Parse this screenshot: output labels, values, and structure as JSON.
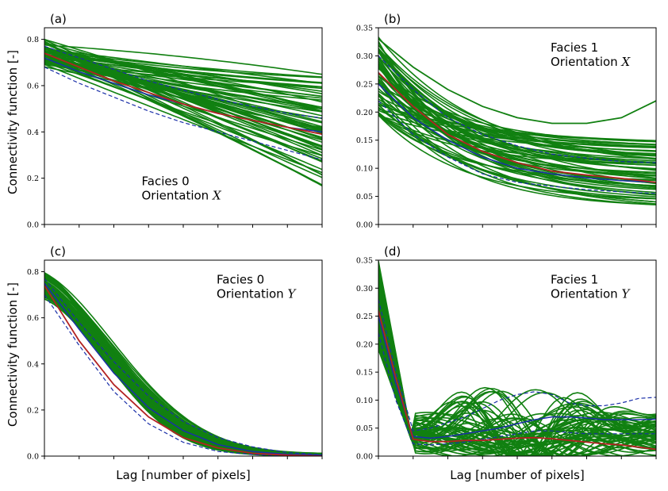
{
  "colors": {
    "realization": "#118011",
    "mean": "#1a2fa8",
    "band": "#1a2fa8",
    "reference": "#b22222"
  },
  "shared": {
    "xlabel": "Lag [number of pixels]",
    "ylabel": "Connectivity function [-]"
  },
  "chart_data": [
    {
      "panel": "(a)",
      "type": "line",
      "annotation": {
        "facies": "Facies 0",
        "orientation_prefix": "Orientation ",
        "orientation_var": "X",
        "placement": "bottom-center"
      },
      "ylim": [
        0,
        0.85
      ],
      "yticks": [
        "0.0",
        "0.2",
        "0.4",
        "0.6",
        "0.8"
      ],
      "x": [
        0,
        1,
        2,
        3,
        4,
        5,
        6,
        7,
        8
      ],
      "realization_profile": {
        "kind": "linear",
        "start_range": [
          0.68,
          0.8
        ],
        "end_range": [
          0.16,
          0.65
        ],
        "count": 60
      },
      "series": [
        {
          "name": "reference",
          "values": [
            0.74,
            0.68,
            0.62,
            0.57,
            0.52,
            0.48,
            0.45,
            0.42,
            0.39
          ]
        },
        {
          "name": "mean",
          "values": [
            0.72,
            0.66,
            0.61,
            0.56,
            0.52,
            0.48,
            0.45,
            0.42,
            0.4
          ]
        },
        {
          "name": "upper",
          "values": [
            0.77,
            0.72,
            0.67,
            0.62,
            0.58,
            0.54,
            0.51,
            0.48,
            0.46
          ]
        },
        {
          "name": "lower",
          "values": [
            0.68,
            0.61,
            0.55,
            0.49,
            0.44,
            0.4,
            0.36,
            0.32,
            0.28
          ]
        }
      ]
    },
    {
      "panel": "(b)",
      "type": "line",
      "annotation": {
        "facies": "Facies 1",
        "orientation_prefix": "Orientation ",
        "orientation_var": "X",
        "placement": "top-right"
      },
      "ylim": [
        0,
        0.35
      ],
      "yticks": [
        "0.00",
        "0.05",
        "0.10",
        "0.15",
        "0.20",
        "0.25",
        "0.30",
        "0.35"
      ],
      "x": [
        0,
        1,
        2,
        3,
        4,
        5,
        6,
        7,
        8
      ],
      "realization_profile": {
        "kind": "decay",
        "start_range": [
          0.19,
          0.34
        ],
        "end_range": [
          0.03,
          0.15
        ],
        "count": 60
      },
      "outlier": {
        "values": [
          0.33,
          0.28,
          0.24,
          0.21,
          0.19,
          0.18,
          0.18,
          0.19,
          0.22
        ]
      },
      "series": [
        {
          "name": "reference",
          "values": [
            0.27,
            0.21,
            0.16,
            0.13,
            0.11,
            0.095,
            0.088,
            0.082,
            0.075
          ]
        },
        {
          "name": "mean",
          "values": [
            0.25,
            0.19,
            0.15,
            0.12,
            0.1,
            0.09,
            0.083,
            0.078,
            0.075
          ]
        },
        {
          "name": "upper",
          "values": [
            0.3,
            0.24,
            0.19,
            0.16,
            0.14,
            0.125,
            0.118,
            0.112,
            0.11
          ]
        },
        {
          "name": "lower",
          "values": [
            0.22,
            0.16,
            0.12,
            0.09,
            0.075,
            0.068,
            0.062,
            0.058,
            0.055
          ]
        }
      ]
    },
    {
      "panel": "(c)",
      "type": "line",
      "annotation": {
        "facies": "Facies 0",
        "orientation_prefix": "Orientation ",
        "orientation_var": "Y",
        "placement": "top-right"
      },
      "ylim": [
        0,
        0.85
      ],
      "yticks": [
        "0.0",
        "0.2",
        "0.4",
        "0.6",
        "0.8"
      ],
      "x": [
        0,
        1,
        2,
        3,
        4,
        5,
        6,
        7,
        8
      ],
      "realization_profile": {
        "kind": "fast-decay",
        "start_range": [
          0.68,
          0.8
        ],
        "end_range": [
          0.0,
          0.01
        ],
        "count": 60
      },
      "series": [
        {
          "name": "reference",
          "values": [
            0.74,
            0.5,
            0.31,
            0.17,
            0.08,
            0.035,
            0.012,
            0.004,
            0.0
          ]
        },
        {
          "name": "mean",
          "values": [
            0.75,
            0.55,
            0.36,
            0.21,
            0.11,
            0.05,
            0.02,
            0.008,
            0.004
          ]
        },
        {
          "name": "upper",
          "values": [
            0.77,
            0.58,
            0.41,
            0.26,
            0.15,
            0.08,
            0.04,
            0.015,
            0.006
          ]
        },
        {
          "name": "lower",
          "values": [
            0.7,
            0.48,
            0.28,
            0.14,
            0.06,
            0.02,
            0.007,
            0.002,
            0.0
          ]
        }
      ]
    },
    {
      "panel": "(d)",
      "type": "line",
      "annotation": {
        "facies": "Facies 1",
        "orientation_prefix": "Orientation ",
        "orientation_var": "Y",
        "placement": "top-right"
      },
      "ylim": [
        0,
        0.35
      ],
      "yticks": [
        "0.00",
        "0.05",
        "0.10",
        "0.15",
        "0.20",
        "0.25",
        "0.30",
        "0.35"
      ],
      "x": [
        0,
        0.5,
        1,
        1.5,
        2,
        2.5,
        3,
        3.5,
        4,
        4.5,
        5,
        5.5,
        6,
        6.5,
        7,
        7.5,
        8
      ],
      "realization_profile": {
        "kind": "drop-then-wavy",
        "start_range": [
          0.19,
          0.35
        ],
        "end_range": [
          0.0,
          0.15
        ],
        "count": 60
      },
      "series": [
        {
          "name": "reference",
          "values": [
            0.26,
            0.14,
            0.03,
            0.026,
            0.026,
            0.028,
            0.028,
            0.03,
            0.032,
            0.033,
            0.031,
            0.028,
            0.025,
            0.022,
            0.02,
            0.016,
            0.012
          ]
        },
        {
          "name": "mean",
          "values": [
            0.25,
            0.13,
            0.035,
            0.032,
            0.035,
            0.04,
            0.045,
            0.05,
            0.058,
            0.065,
            0.07,
            0.07,
            0.068,
            0.065,
            0.065,
            0.065,
            0.066
          ]
        },
        {
          "name": "upper",
          "values": [
            0.28,
            0.15,
            0.045,
            0.05,
            0.06,
            0.07,
            0.085,
            0.1,
            0.11,
            0.115,
            0.11,
            0.095,
            0.09,
            0.09,
            0.095,
            0.103,
            0.105
          ]
        },
        {
          "name": "lower",
          "values": [
            0.22,
            0.1,
            0.022,
            0.02,
            0.022,
            0.025,
            0.03,
            0.035,
            0.04,
            0.045,
            0.045,
            0.042,
            0.04,
            0.04,
            0.04,
            0.04,
            0.04
          ]
        }
      ]
    }
  ]
}
